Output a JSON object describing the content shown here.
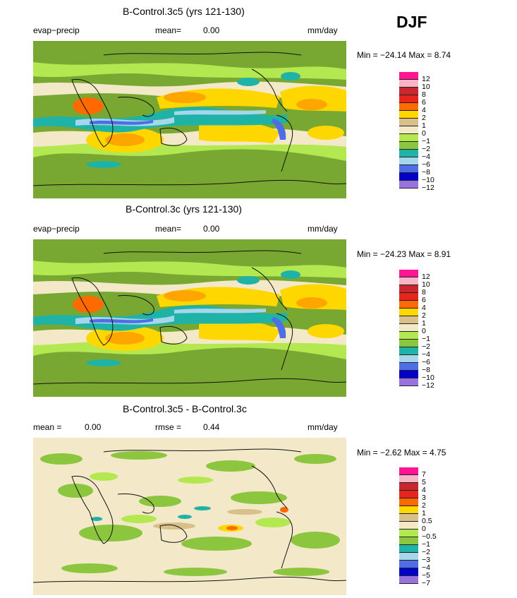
{
  "season": "DJF",
  "panels": [
    {
      "title": "B-Control.3c5 (yrs 121-130)",
      "left_label": "evap−precip",
      "mid_label": "mean=",
      "mid_value": "0.00",
      "right_label": "mm/day",
      "minmax": "Min = −24.14 Max =    8.74",
      "legend_ticks": [
        "12",
        "10",
        "8",
        "6",
        "4",
        "2",
        "1",
        "0",
        "−1",
        "−2",
        "−4",
        "−6",
        "−8",
        "−10",
        "−12"
      ]
    },
    {
      "title": "B-Control.3c (yrs 121-130)",
      "left_label": "evap−precip",
      "mid_label": "mean=",
      "mid_value": "0.00",
      "right_label": "mm/day",
      "minmax": "Min = −24.23 Max =    8.91",
      "legend_ticks": [
        "12",
        "10",
        "8",
        "6",
        "4",
        "2",
        "1",
        "0",
        "−1",
        "−2",
        "−4",
        "−6",
        "−8",
        "−10",
        "−12"
      ]
    },
    {
      "title": "B-Control.3c5 - B-Control.3c",
      "left_label": "mean =",
      "left_value": "0.00",
      "mid_label": "rmse =",
      "mid_value": "0.44",
      "right_label": "mm/day",
      "minmax": "Min =  −2.62 Max =    4.75",
      "legend_ticks": [
        "7",
        "5",
        "4",
        "3",
        "2",
        "1",
        "0.5",
        "0",
        "−0.5",
        "−1",
        "−2",
        "−3",
        "−4",
        "−5",
        "−7"
      ]
    }
  ],
  "colors": {
    "legend": [
      "#9a72e0",
      "#0000c8",
      "#4f6ee6",
      "#a6d6ea",
      "#1fb3a8",
      "#8cc63f",
      "#b4e850",
      "#f3e8c8",
      "#d9c08a",
      "#ffd700",
      "#ffa500",
      "#ff6a00",
      "#e8251c",
      "#c8282d",
      "#f7b6c8",
      "#ff1493"
    ],
    "land": "#79a832",
    "coast": "#111111"
  },
  "chart_data": [
    {
      "type": "heatmap",
      "title": "B-Control.3c5 (yrs 121-130)",
      "variable": "evap−precip",
      "units": "mm/day",
      "mean": 0.0,
      "min": -24.14,
      "max": 8.74,
      "contour_levels": [
        -12,
        -10,
        -8,
        -6,
        -4,
        -2,
        -1,
        0,
        1,
        2,
        4,
        6,
        8,
        10,
        12
      ]
    },
    {
      "type": "heatmap",
      "title": "B-Control.3c (yrs 121-130)",
      "variable": "evap−precip",
      "units": "mm/day",
      "mean": 0.0,
      "min": -24.23,
      "max": 8.91,
      "contour_levels": [
        -12,
        -10,
        -8,
        -6,
        -4,
        -2,
        -1,
        0,
        1,
        2,
        4,
        6,
        8,
        10,
        12
      ]
    },
    {
      "type": "heatmap",
      "title": "B-Control.3c5 - B-Control.3c",
      "units": "mm/day",
      "mean": 0.0,
      "rmse": 0.44,
      "min": -2.62,
      "max": 4.75,
      "contour_levels": [
        -7,
        -5,
        -4,
        -3,
        -2,
        -1,
        -0.5,
        0,
        0.5,
        1,
        2,
        3,
        4,
        5,
        7
      ]
    }
  ]
}
